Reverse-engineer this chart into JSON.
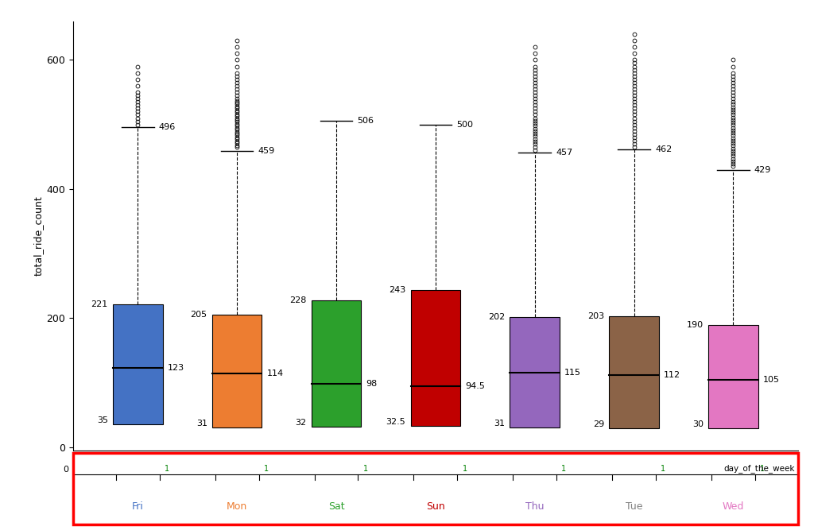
{
  "days": [
    "Fri",
    "Mon",
    "Sat",
    "Sun",
    "Thu",
    "Tue",
    "Wed"
  ],
  "box_colors": {
    "Fri": "#4472C4",
    "Mon": "#ED7D31",
    "Sat": "#2CA02C",
    "Sun": "#C00000",
    "Thu": "#9467BD",
    "Tue": "#8B6347",
    "Wed": "#E377C2"
  },
  "day_label_colors": {
    "Fri": "#4472C4",
    "Mon": "#ED7D31",
    "Sat": "#2CA02C",
    "Sun": "#C00000",
    "Thu": "#9467BD",
    "Tue": "#808080",
    "Wed": "#E377C2"
  },
  "q1": [
    35,
    31,
    32,
    32.5,
    31,
    29,
    30
  ],
  "median": [
    123,
    114,
    98,
    94.5,
    115,
    112,
    105
  ],
  "q3": [
    221,
    205,
    228,
    243,
    202,
    203,
    190
  ],
  "whisker_high": [
    496,
    459,
    506,
    500,
    457,
    462,
    429
  ],
  "whisker_low": [
    35,
    31,
    32,
    32.5,
    31,
    29,
    30
  ],
  "ylabel": "total_ride_count",
  "xlabel": "day_of_the_week",
  "yticks": [
    0,
    200,
    400,
    600
  ],
  "ylim_main": [
    -5,
    660
  ],
  "box_width": 0.5,
  "outlier_data": {
    "Fri": [
      500,
      505,
      510,
      515,
      520,
      525,
      530,
      535,
      540,
      545,
      550,
      560,
      570,
      580,
      590
    ],
    "Mon": [
      465,
      468,
      471,
      474,
      477,
      480,
      483,
      486,
      489,
      492,
      495,
      498,
      501,
      504,
      507,
      510,
      513,
      516,
      519,
      522,
      525,
      528,
      531,
      534,
      537,
      540,
      545,
      550,
      555,
      560,
      565,
      570,
      575,
      580,
      590,
      600,
      610,
      620,
      630
    ],
    "Sat": [],
    "Sun": [],
    "Thu": [
      460,
      465,
      470,
      474,
      478,
      482,
      486,
      490,
      494,
      498,
      502,
      506,
      510,
      515,
      520,
      525,
      530,
      535,
      540,
      545,
      550,
      555,
      560,
      565,
      570,
      575,
      580,
      585,
      590,
      600,
      610,
      620
    ],
    "Tue": [
      465,
      470,
      475,
      480,
      485,
      490,
      495,
      500,
      505,
      510,
      515,
      520,
      525,
      530,
      535,
      540,
      545,
      550,
      555,
      560,
      565,
      570,
      575,
      580,
      585,
      590,
      595,
      600,
      610,
      620,
      630,
      640
    ],
    "Wed": [
      435,
      439,
      443,
      447,
      451,
      455,
      459,
      463,
      467,
      471,
      475,
      479,
      483,
      487,
      491,
      495,
      499,
      503,
      507,
      511,
      515,
      519,
      523,
      527,
      531,
      535,
      540,
      545,
      550,
      555,
      560,
      565,
      570,
      575,
      580,
      590,
      600
    ]
  }
}
